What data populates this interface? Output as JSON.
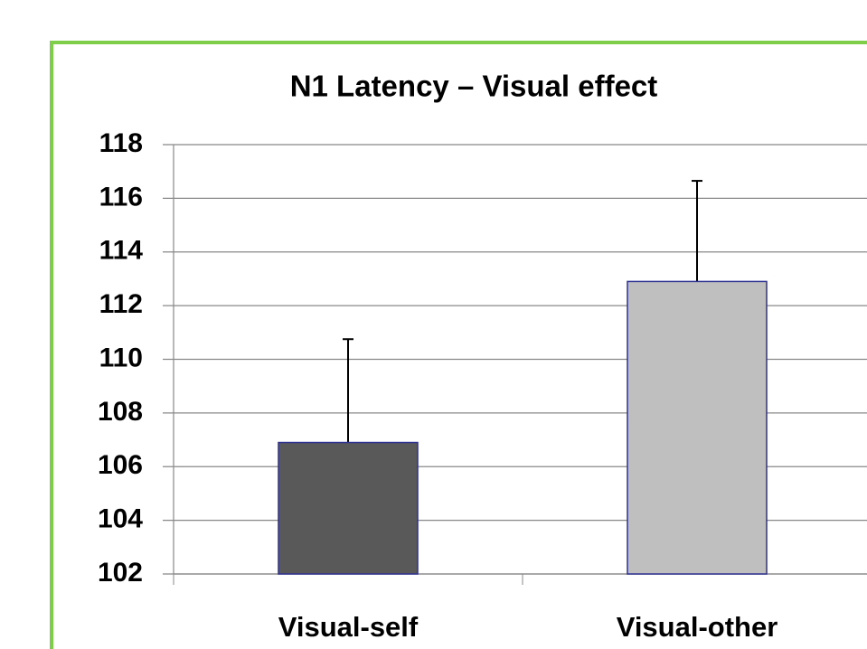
{
  "chart_data": {
    "type": "bar",
    "title": "N1 Latency – Visual effect",
    "categories": [
      "Visual-self",
      "Visual-other"
    ],
    "values": [
      106.9,
      112.9
    ],
    "errors": [
      3.85,
      3.75
    ],
    "colors": [
      "#595959",
      "#bfbfbf"
    ],
    "ylim": [
      102,
      118
    ],
    "yticks": [
      102,
      104,
      106,
      108,
      110,
      112,
      114,
      116,
      118
    ],
    "grid": true
  }
}
